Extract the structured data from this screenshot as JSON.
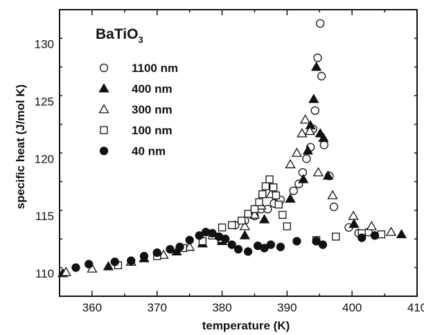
{
  "chart_data": {
    "type": "scatter",
    "title": "BaTiO",
    "title_subscript": "3",
    "xlabel": "temperature (K)",
    "ylabel": "specific heat (J/mol K)",
    "xlim": [
      355,
      410
    ],
    "ylim": [
      108,
      133
    ],
    "xticks": [
      360,
      370,
      380,
      390,
      400,
      410
    ],
    "yticks": [
      110,
      115,
      120,
      125,
      130
    ],
    "legend_position": "top-left",
    "grid": false,
    "series": [
      {
        "name": "1100 nm",
        "marker": "circle-open",
        "points": [
          [
            382,
            114.2
          ],
          [
            383.5,
            114.6
          ],
          [
            385,
            115.0
          ],
          [
            386,
            115.6
          ],
          [
            387,
            115.6
          ],
          [
            388,
            116.1
          ],
          [
            389,
            116.4
          ],
          [
            391,
            117.2
          ],
          [
            391.8,
            117.8
          ],
          [
            392.4,
            118.8
          ],
          [
            393,
            120.0
          ],
          [
            393.6,
            121.0
          ],
          [
            394,
            122.6
          ],
          [
            394.3,
            124.2
          ],
          [
            394.7,
            128.8
          ],
          [
            395.1,
            131.8
          ],
          [
            395.3,
            127.2
          ],
          [
            395.7,
            121.2
          ],
          [
            396.5,
            118.5
          ],
          [
            397.2,
            115.8
          ],
          [
            399.5,
            114.0
          ],
          [
            401,
            113.5
          ],
          [
            402.5,
            113.6
          ]
        ]
      },
      {
        "name": "400 nm",
        "marker": "triangle-filled",
        "points": [
          [
            355.5,
            110.0
          ],
          [
            362.5,
            110.6
          ],
          [
            368,
            111.3
          ],
          [
            373,
            111.9
          ],
          [
            377,
            112.6
          ],
          [
            380,
            112.8
          ],
          [
            383.5,
            113.3
          ],
          [
            386.5,
            114.7
          ],
          [
            390.5,
            116.5
          ],
          [
            392.5,
            118.2
          ],
          [
            393.2,
            120.7
          ],
          [
            393.6,
            122.9
          ],
          [
            394.1,
            125.2
          ],
          [
            394.5,
            128.0
          ],
          [
            395.1,
            122.2
          ],
          [
            395.6,
            121.8
          ],
          [
            396.3,
            118.5
          ],
          [
            400.3,
            114.3
          ],
          [
            407.6,
            113.4
          ]
        ]
      },
      {
        "name": "300 nm",
        "marker": "triangle-open",
        "points": [
          [
            356,
            110.1
          ],
          [
            360,
            110.4
          ],
          [
            366,
            111.0
          ],
          [
            371,
            111.6
          ],
          [
            375,
            112.3
          ],
          [
            380,
            113.0
          ],
          [
            383.5,
            114.1
          ],
          [
            385,
            115.1
          ],
          [
            386,
            115.9
          ],
          [
            387.5,
            116.9
          ],
          [
            390.5,
            119.5
          ],
          [
            391.5,
            120.5
          ],
          [
            392.3,
            122.2
          ],
          [
            392.8,
            123.4
          ],
          [
            393.5,
            122.4
          ],
          [
            394.8,
            118.8
          ],
          [
            397,
            116.8
          ],
          [
            400.2,
            115.0
          ],
          [
            403,
            114.1
          ],
          [
            406,
            113.6
          ]
        ]
      },
      {
        "name": "100 nm",
        "marker": "square-open",
        "points": [
          [
            364,
            110.7
          ],
          [
            370,
            111.5
          ],
          [
            374,
            112.2
          ],
          [
            377,
            112.8
          ],
          [
            378.5,
            113.3
          ],
          [
            380,
            114.0
          ],
          [
            381.5,
            114.2
          ],
          [
            383,
            114.6
          ],
          [
            384,
            115.2
          ],
          [
            385,
            115.6
          ],
          [
            385.7,
            116.2
          ],
          [
            386.2,
            116.9
          ],
          [
            386.7,
            117.6
          ],
          [
            387.3,
            118.2
          ],
          [
            387.9,
            117.5
          ],
          [
            388.3,
            116.8
          ],
          [
            388.7,
            116.0
          ],
          [
            389.3,
            115.1
          ],
          [
            390,
            114.1
          ],
          [
            394.5,
            112.9
          ],
          [
            397.5,
            113.2
          ],
          [
            401.5,
            113.5
          ],
          [
            404.5,
            113.4
          ]
        ]
      },
      {
        "name": "40 nm",
        "marker": "circle-filled",
        "points": [
          [
            357.5,
            110.5
          ],
          [
            359.5,
            110.8
          ],
          [
            363.5,
            111.0
          ],
          [
            366,
            111.1
          ],
          [
            368,
            111.5
          ],
          [
            370,
            111.8
          ],
          [
            372,
            112.1
          ],
          [
            373.5,
            112.3
          ],
          [
            375,
            112.9
          ],
          [
            376.5,
            113.3
          ],
          [
            377.5,
            113.6
          ],
          [
            378.5,
            113.5
          ],
          [
            379.5,
            113.2
          ],
          [
            380.5,
            113.0
          ],
          [
            381.5,
            112.5
          ],
          [
            382.5,
            112.1
          ],
          [
            384,
            111.9
          ],
          [
            385.5,
            112.4
          ],
          [
            386.5,
            112.2
          ],
          [
            387.5,
            112.5
          ],
          [
            389,
            112.3
          ],
          [
            391.5,
            112.8
          ],
          [
            394.5,
            112.8
          ],
          [
            395.5,
            112.5
          ],
          [
            401.5,
            113.1
          ],
          [
            403.5,
            113.3
          ]
        ]
      }
    ]
  }
}
